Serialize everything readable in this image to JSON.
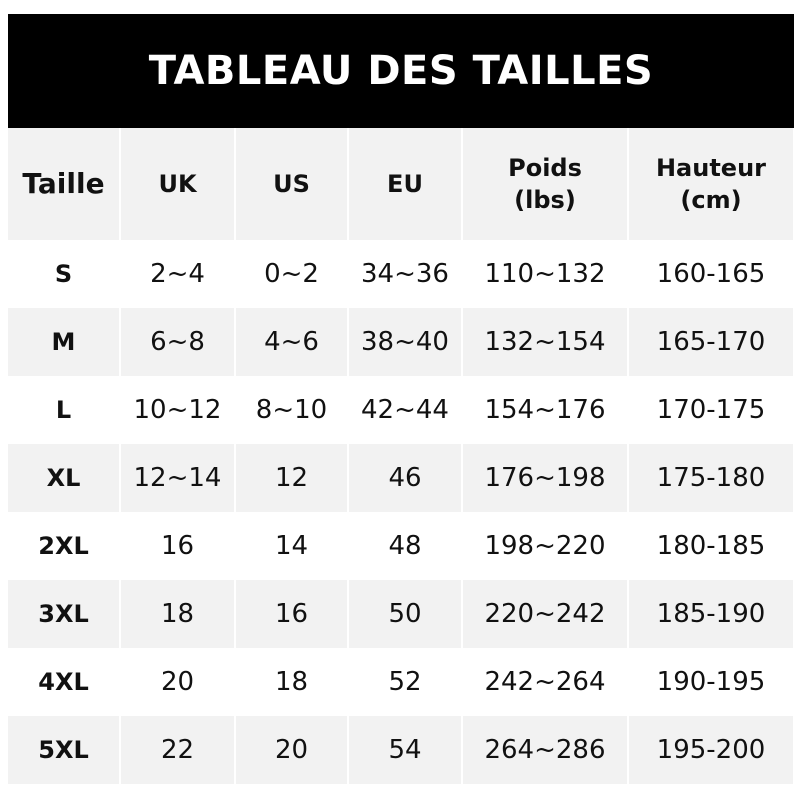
{
  "title": "TABLEAU DES TAILLES",
  "headers": [
    {
      "label": "Taille",
      "sub": ""
    },
    {
      "label": "UK",
      "sub": ""
    },
    {
      "label": "US",
      "sub": ""
    },
    {
      "label": "EU",
      "sub": ""
    },
    {
      "label": "Poids",
      "sub": "(lbs)"
    },
    {
      "label": "Hauteur",
      "sub": "(cm)"
    }
  ],
  "rows": [
    [
      "S",
      "2~4",
      "0~2",
      "34~36",
      "110~132",
      "160-165"
    ],
    [
      "M",
      "6~8",
      "4~6",
      "38~40",
      "132~154",
      "165-170"
    ],
    [
      "L",
      "10~12",
      "8~10",
      "42~44",
      "154~176",
      "170-175"
    ],
    [
      "XL",
      "12~14",
      "12",
      "46",
      "176~198",
      "175-180"
    ],
    [
      "2XL",
      "16",
      "14",
      "48",
      "198~220",
      "180-185"
    ],
    [
      "3XL",
      "18",
      "16",
      "50",
      "220~242",
      "185-190"
    ],
    [
      "4XL",
      "20",
      "18",
      "52",
      "242~264",
      "190-195"
    ],
    [
      "5XL",
      "22",
      "20",
      "54",
      "264~286",
      "195-200"
    ]
  ]
}
